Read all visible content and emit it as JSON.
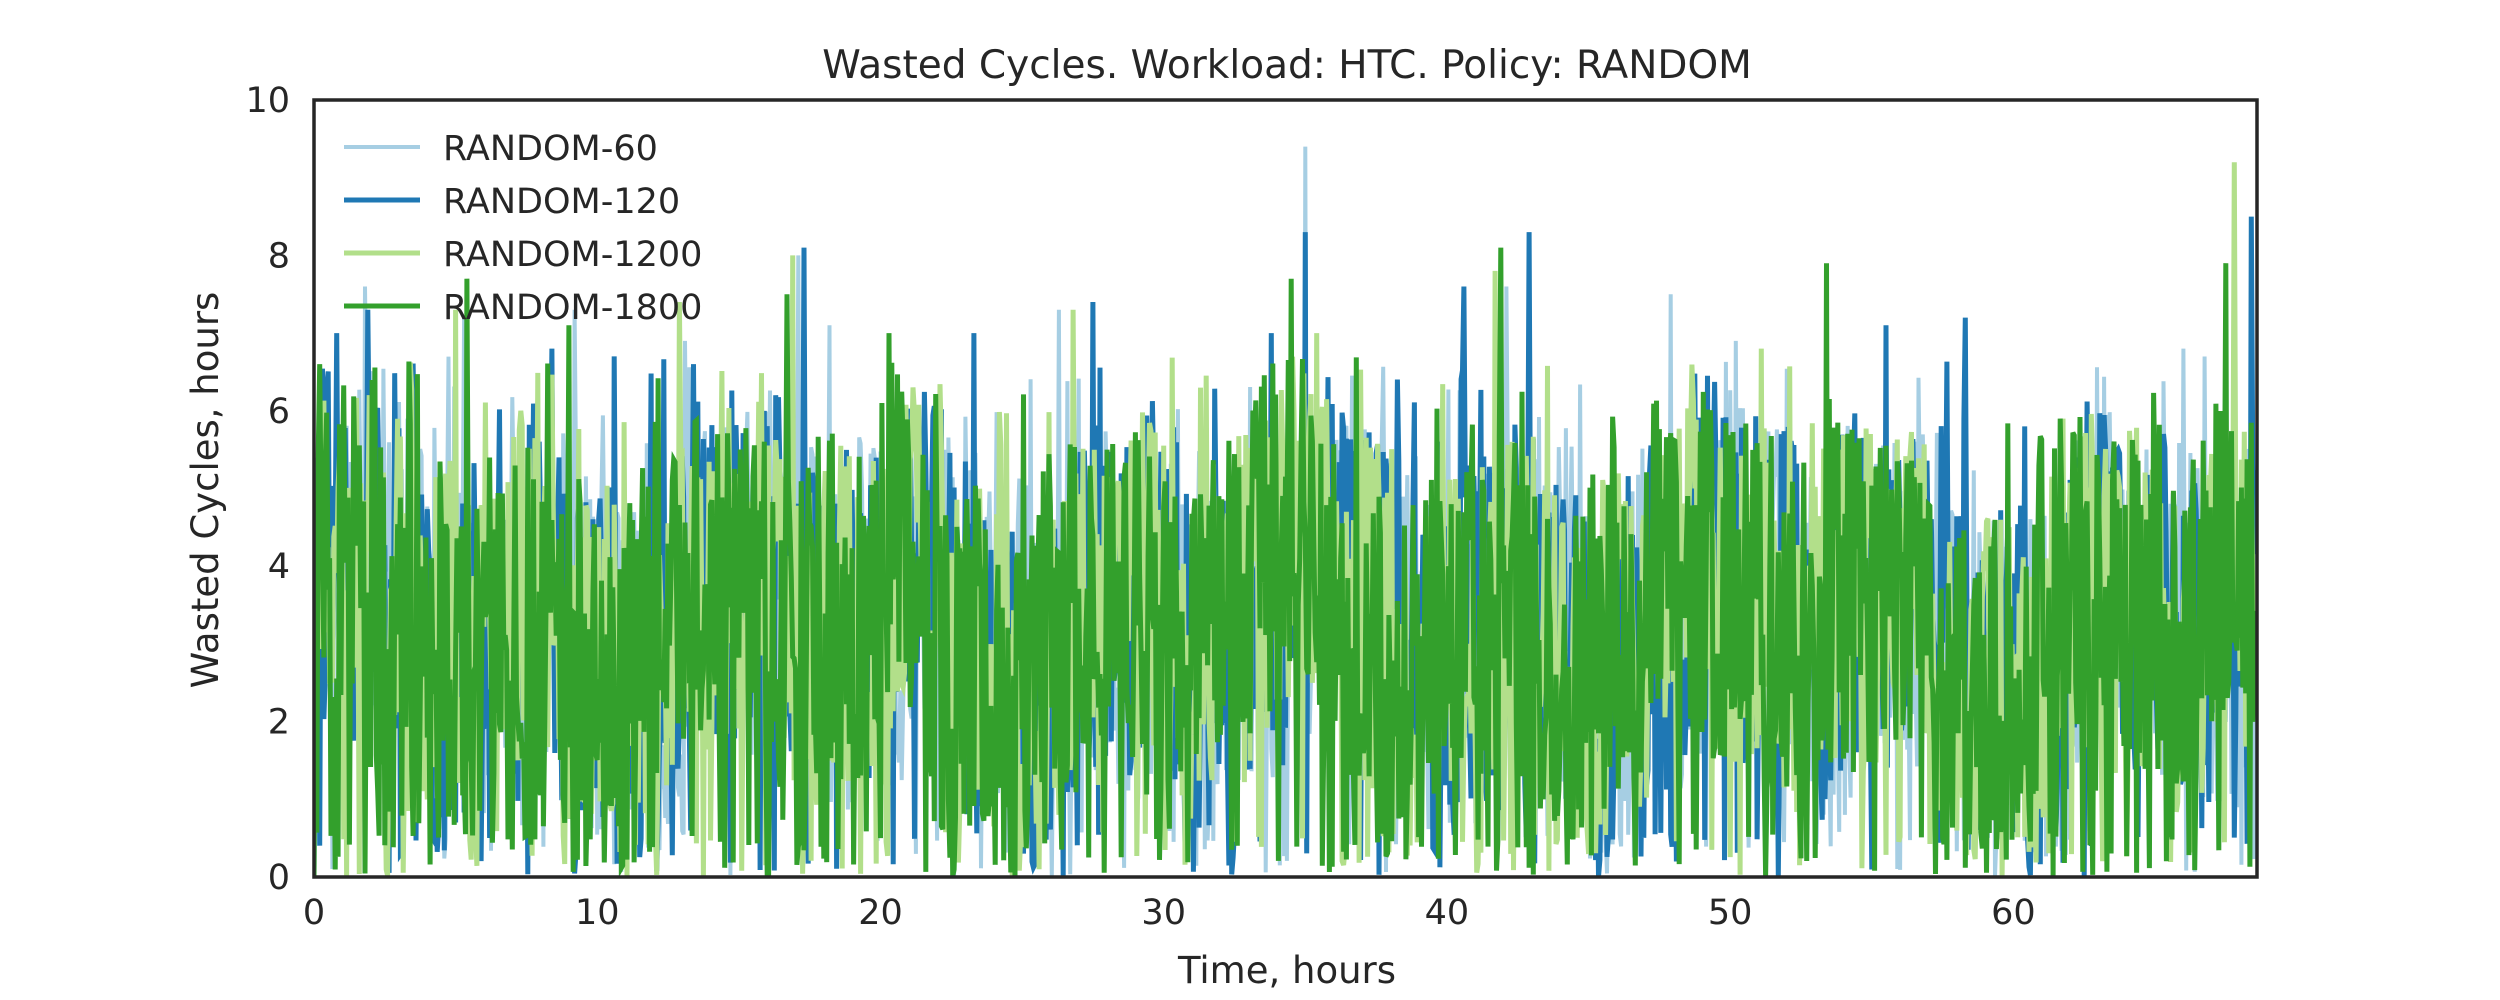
{
  "chart_data": {
    "type": "line",
    "title": "Wasted Cycles. Workload: HTC. Policy: RANDOM",
    "xlabel": "Time, hours",
    "ylabel": "Wasted Cycles, hours",
    "xlim": [
      0,
      68.6
    ],
    "ylim": [
      0,
      10
    ],
    "xticks": [
      0,
      10,
      20,
      30,
      40,
      50,
      60
    ],
    "yticks": [
      0,
      2,
      4,
      6,
      8,
      10
    ],
    "grid": false,
    "legend_position": "top-left",
    "sample_step_hours": 0.05,
    "series": [
      {
        "name": "RANDOM-60",
        "color": "#a6cee3",
        "stroke": 4,
        "peaks": [
          {
            "x": 0.3,
            "y": 6.5
          },
          {
            "x": 1.8,
            "y": 7.6
          },
          {
            "x": 3.3,
            "y": 5.9
          },
          {
            "x": 5.3,
            "y": 7.2
          },
          {
            "x": 9.2,
            "y": 7.3
          },
          {
            "x": 13.1,
            "y": 6.9
          },
          {
            "x": 17.1,
            "y": 8.0
          },
          {
            "x": 18.2,
            "y": 7.1
          },
          {
            "x": 26.3,
            "y": 7.3
          },
          {
            "x": 35.0,
            "y": 9.4
          },
          {
            "x": 42.1,
            "y": 7.6
          },
          {
            "x": 47.9,
            "y": 7.5
          },
          {
            "x": 50.2,
            "y": 6.9
          },
          {
            "x": 66.0,
            "y": 6.8
          },
          {
            "x": 67.8,
            "y": 8.4
          }
        ]
      },
      {
        "name": "RANDOM-120",
        "color": "#1f78b4",
        "stroke": 5,
        "peaks": [
          {
            "x": 0.8,
            "y": 7.0
          },
          {
            "x": 1.9,
            "y": 7.3
          },
          {
            "x": 8.4,
            "y": 6.8
          },
          {
            "x": 10.6,
            "y": 6.7
          },
          {
            "x": 13.4,
            "y": 6.6
          },
          {
            "x": 17.3,
            "y": 8.1
          },
          {
            "x": 23.3,
            "y": 7.0
          },
          {
            "x": 27.5,
            "y": 7.4
          },
          {
            "x": 33.8,
            "y": 7.0
          },
          {
            "x": 35.0,
            "y": 8.3
          },
          {
            "x": 40.6,
            "y": 7.6
          },
          {
            "x": 42.9,
            "y": 8.3
          },
          {
            "x": 55.5,
            "y": 7.1
          },
          {
            "x": 58.3,
            "y": 7.2
          },
          {
            "x": 68.4,
            "y": 8.5
          }
        ]
      },
      {
        "name": "RANDOM-1200",
        "color": "#b2df8a",
        "stroke": 5,
        "peaks": [
          {
            "x": 5.0,
            "y": 7.3
          },
          {
            "x": 7.3,
            "y": 6.0
          },
          {
            "x": 12.9,
            "y": 7.4
          },
          {
            "x": 16.9,
            "y": 8.0
          },
          {
            "x": 26.8,
            "y": 7.3
          },
          {
            "x": 35.4,
            "y": 7.0
          },
          {
            "x": 41.7,
            "y": 7.8
          },
          {
            "x": 51.1,
            "y": 6.8
          },
          {
            "x": 67.8,
            "y": 9.2
          }
        ]
      },
      {
        "name": "RANDOM-1800",
        "color": "#33a02c",
        "stroke": 5,
        "peaks": [
          {
            "x": 0.2,
            "y": 6.6
          },
          {
            "x": 5.4,
            "y": 7.7
          },
          {
            "x": 9.0,
            "y": 7.1
          },
          {
            "x": 16.7,
            "y": 7.5
          },
          {
            "x": 20.3,
            "y": 7.0
          },
          {
            "x": 34.5,
            "y": 7.7
          },
          {
            "x": 41.9,
            "y": 8.1
          },
          {
            "x": 53.4,
            "y": 7.9
          },
          {
            "x": 67.5,
            "y": 7.9
          }
        ]
      }
    ]
  }
}
